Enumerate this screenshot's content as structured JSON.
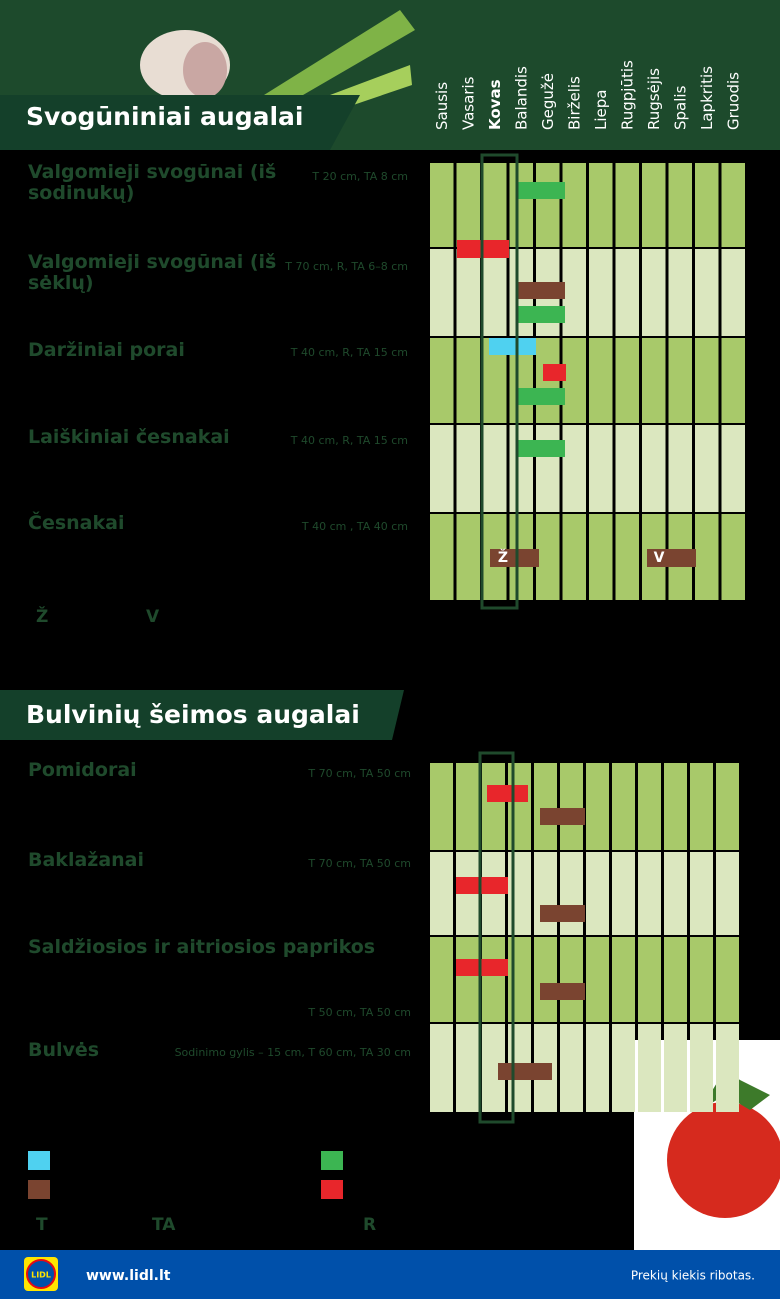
{
  "months": [
    "Sausis",
    "Vasaris",
    "Kovas",
    "Balandis",
    "Gegužė",
    "Birželis",
    "Liepa",
    "Rugpjūtis",
    "Rugsėjis",
    "Spalis",
    "Lapkritis",
    "Gruodis"
  ],
  "sections": [
    {
      "title": "Svogūniniai augalai",
      "plants": [
        {
          "name": "Valgomieji svogūnai (iš sodinukų)",
          "spacing": "T 20 cm, TA 8 cm"
        },
        {
          "name": "Valgomieji svogūnai (iš sėklų)",
          "spacing": "T 70 cm, R, TA 6–8 cm"
        },
        {
          "name": "Daržiniai porai",
          "spacing": "T 40 cm, R, TA 15 cm"
        },
        {
          "name": "Laiškiniai česnakai",
          "spacing": "T 40 cm, R, TA 15 cm"
        },
        {
          "name": "Česnakai",
          "spacing": "T 40 cm , TA 40 cm"
        }
      ],
      "bar_labels": [
        "Ž",
        "V"
      ],
      "notes": [
        "Ž",
        "V"
      ]
    },
    {
      "title": "Bulvinių šeimos augalai",
      "plants": [
        {
          "name": "Pomidorai",
          "spacing": "T 70 cm, TA 50 cm"
        },
        {
          "name": "Baklažanai",
          "spacing": "T 70 cm, TA 50 cm"
        },
        {
          "name": "Saldžiosios ir aitriosios paprikos",
          "spacing": "T 50 cm, TA 50 cm"
        },
        {
          "name": "Bulvės",
          "spacing": "Sodinimo gylis – 15 cm, T 60 cm, TA 30 cm"
        }
      ]
    }
  ],
  "legend_letters": [
    "T",
    "TA",
    "R"
  ],
  "footer": {
    "logo": "LIDL",
    "url": "www.lidl.lt",
    "note": "Prekių kiekis ribotas."
  }
}
